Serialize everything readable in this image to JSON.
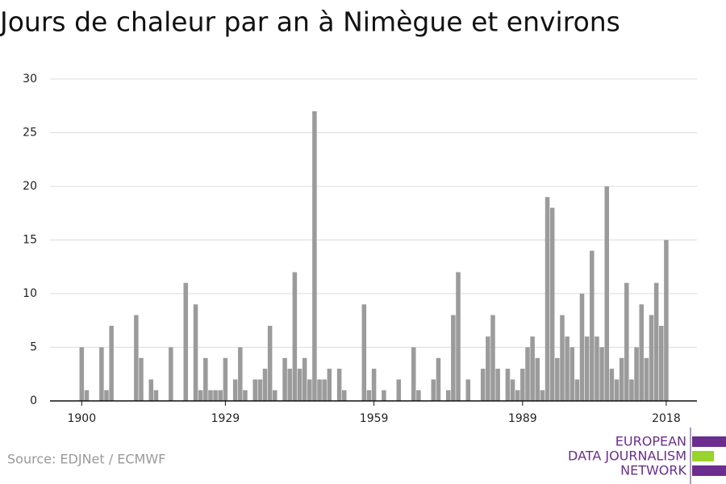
{
  "chart_data": {
    "type": "bar",
    "title": "Jours de chaleur par an à Nimègue et environs",
    "source": "Source: EDJNet / ECMWF",
    "logo": [
      "EUROPEAN",
      "DATA JOURNALISM",
      "NETWORK"
    ],
    "x": [
      1900,
      1901,
      1902,
      1903,
      1904,
      1905,
      1906,
      1907,
      1908,
      1909,
      1910,
      1911,
      1912,
      1913,
      1914,
      1915,
      1916,
      1917,
      1918,
      1919,
      1920,
      1921,
      1922,
      1923,
      1924,
      1925,
      1926,
      1927,
      1928,
      1929,
      1930,
      1931,
      1932,
      1933,
      1934,
      1935,
      1936,
      1937,
      1938,
      1939,
      1940,
      1941,
      1942,
      1943,
      1944,
      1945,
      1946,
      1947,
      1948,
      1949,
      1950,
      1951,
      1952,
      1953,
      1954,
      1955,
      1956,
      1957,
      1958,
      1959,
      1960,
      1961,
      1962,
      1963,
      1964,
      1965,
      1966,
      1967,
      1968,
      1969,
      1970,
      1971,
      1972,
      1973,
      1974,
      1975,
      1976,
      1977,
      1978,
      1979,
      1980,
      1981,
      1982,
      1983,
      1984,
      1985,
      1986,
      1987,
      1988,
      1989,
      1990,
      1991,
      1992,
      1993,
      1994,
      1995,
      1996,
      1997,
      1998,
      1999,
      2000,
      2001,
      2002,
      2003,
      2004,
      2005,
      2006,
      2007,
      2008,
      2009,
      2010,
      2011,
      2012,
      2013,
      2014,
      2015,
      2016,
      2017,
      2018
    ],
    "values": [
      5,
      1,
      0,
      0,
      5,
      1,
      7,
      0,
      0,
      0,
      0,
      8,
      4,
      0,
      2,
      1,
      0,
      0,
      5,
      0,
      0,
      11,
      0,
      9,
      1,
      4,
      1,
      1,
      1,
      4,
      0,
      2,
      5,
      1,
      0,
      2,
      2,
      3,
      7,
      1,
      0,
      4,
      3,
      12,
      3,
      4,
      2,
      27,
      2,
      2,
      3,
      0,
      3,
      1,
      0,
      0,
      0,
      9,
      1,
      3,
      0,
      1,
      0,
      0,
      2,
      0,
      0,
      5,
      1,
      0,
      0,
      2,
      4,
      0,
      1,
      8,
      12,
      0,
      2,
      0,
      0,
      3,
      6,
      8,
      3,
      0,
      3,
      2,
      1,
      3,
      5,
      6,
      4,
      1,
      19,
      18,
      4,
      8,
      6,
      5,
      2,
      10,
      6,
      14,
      6,
      5,
      20,
      3,
      2,
      4,
      11,
      2,
      5,
      9,
      4,
      8,
      11,
      7,
      15
    ],
    "color": "#9b9b9b",
    "xlim": [
      1893.6,
      2024.2
    ],
    "xticks": [
      1900,
      1929,
      1959,
      1989,
      2018
    ],
    "ylim": [
      0,
      30
    ],
    "yticks": [
      0,
      5,
      10,
      15,
      20,
      25,
      30
    ],
    "grid": true
  }
}
